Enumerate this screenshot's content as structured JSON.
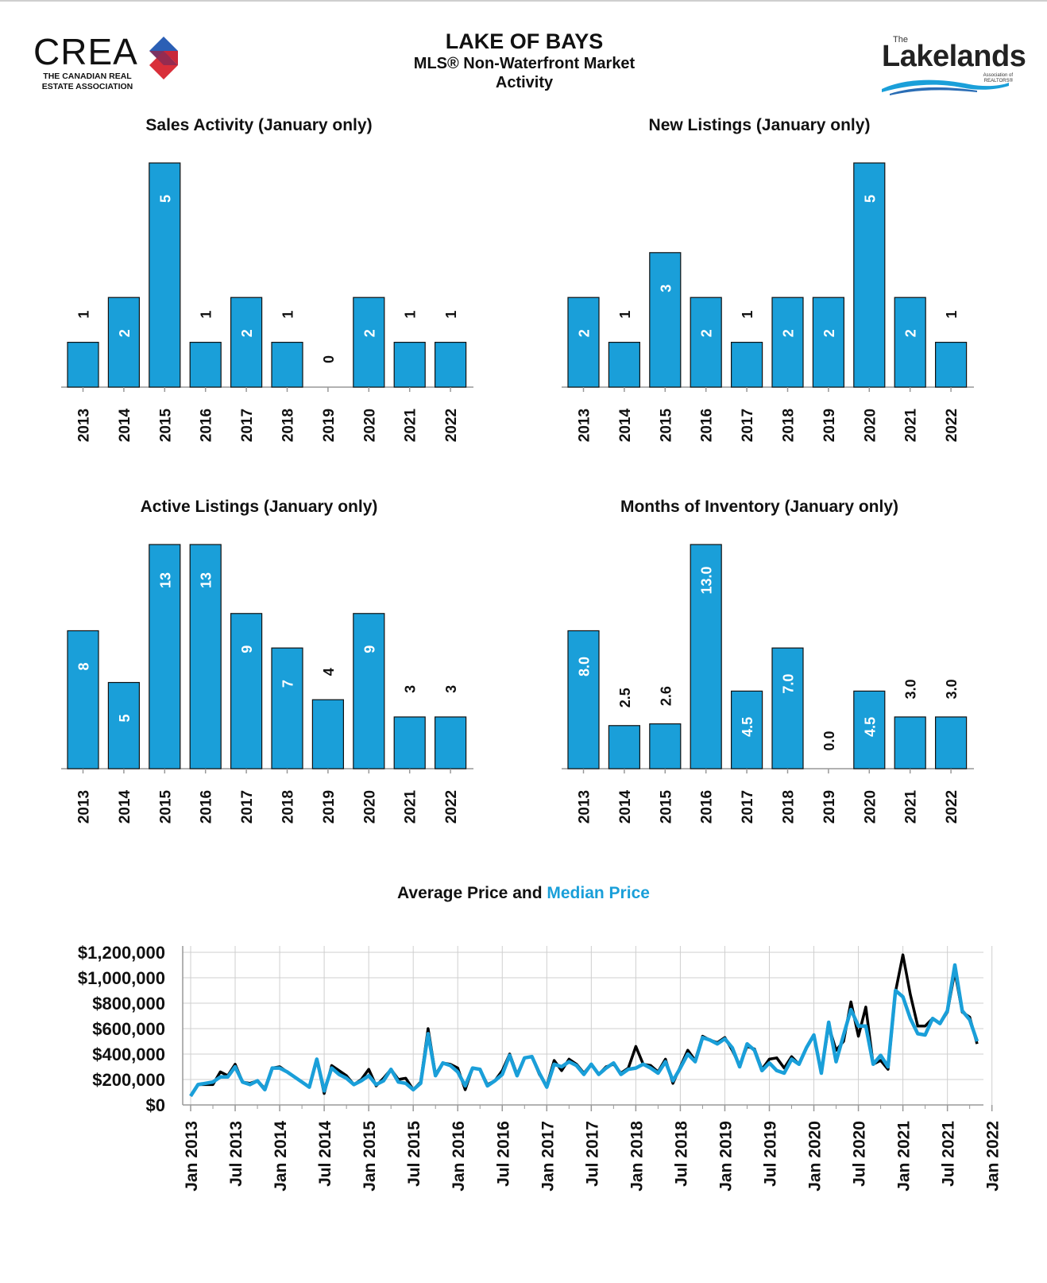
{
  "header": {
    "title": "LAKE OF BAYS",
    "subtitle_line1": "MLS® Non-Waterfront Market",
    "subtitle_line2": "Activity",
    "left_logo_word": "CREA",
    "left_logo_sub_line1": "THE CANADIAN REAL",
    "left_logo_sub_line2": "ESTATE ASSOCIATION",
    "right_logo_the": "The",
    "right_logo_word": "Lakelands",
    "right_logo_sub_line1": "Association of",
    "right_logo_sub_line2": "REALTORS®"
  },
  "colors": {
    "bar": "#1a9fd9",
    "bar_stroke": "#111111",
    "average": "#000000",
    "median": "#1a9fd9"
  },
  "chart_data": [
    {
      "id": "sales",
      "type": "bar",
      "title": "Sales Activity (January only)",
      "categories": [
        "2013",
        "2014",
        "2015",
        "2016",
        "2017",
        "2018",
        "2019",
        "2020",
        "2021",
        "2022"
      ],
      "values": [
        1,
        2,
        5,
        1,
        2,
        1,
        0,
        2,
        1,
        1
      ],
      "labels": [
        "1",
        "2",
        "5",
        "1",
        "2",
        "1",
        "0",
        "2",
        "1",
        "1"
      ],
      "ylim": [
        0,
        5
      ]
    },
    {
      "id": "newlistings",
      "type": "bar",
      "title": "New Listings (January only)",
      "categories": [
        "2013",
        "2014",
        "2015",
        "2016",
        "2017",
        "2018",
        "2019",
        "2020",
        "2021",
        "2022"
      ],
      "values": [
        2,
        1,
        3,
        2,
        1,
        2,
        2,
        5,
        2,
        1
      ],
      "labels": [
        "2",
        "1",
        "3",
        "2",
        "1",
        "2",
        "2",
        "5",
        "2",
        "1"
      ],
      "ylim": [
        0,
        5
      ]
    },
    {
      "id": "active",
      "type": "bar",
      "title": "Active Listings (January only)",
      "categories": [
        "2013",
        "2014",
        "2015",
        "2016",
        "2017",
        "2018",
        "2019",
        "2020",
        "2021",
        "2022"
      ],
      "values": [
        8,
        5,
        13,
        13,
        9,
        7,
        4,
        9,
        3,
        3
      ],
      "labels": [
        "8",
        "5",
        "13",
        "13",
        "9",
        "7",
        "4",
        "9",
        "3",
        "3"
      ],
      "ylim": [
        0,
        13
      ]
    },
    {
      "id": "moi",
      "type": "bar",
      "title": "Months of Inventory (January only)",
      "categories": [
        "2013",
        "2014",
        "2015",
        "2016",
        "2017",
        "2018",
        "2019",
        "2020",
        "2021",
        "2022"
      ],
      "values": [
        8.0,
        2.5,
        2.6,
        13.0,
        4.5,
        7.0,
        0.0,
        4.5,
        3.0,
        3.0
      ],
      "labels": [
        "8.0",
        "2.5",
        "2.6",
        "13.0",
        "4.5",
        "7.0",
        "0.0",
        "4.5",
        "3.0",
        "3.0"
      ],
      "ylim": [
        0,
        13
      ]
    },
    {
      "id": "prices",
      "type": "line",
      "title_part1": "Average Price and",
      "title_part2": "Median Price",
      "x_tick_labels": [
        "Jan 2013",
        "Jul 2013",
        "Jan 2014",
        "Jul 2014",
        "Jan 2015",
        "Jul 2015",
        "Jan 2016",
        "Jul 2016",
        "Jan 2017",
        "Jul 2017",
        "Jan 2018",
        "Jul 2018",
        "Jan 2019",
        "Jul 2019",
        "Jan 2020",
        "Jul 2020",
        "Jan 2021",
        "Jul 2021",
        "Jan 2022"
      ],
      "y_tick_labels": [
        "$0",
        "$200,000",
        "$400,000",
        "$600,000",
        "$800,000",
        "$1,000,000",
        "$1,200,000"
      ],
      "y_ticks": [
        0,
        200000,
        400000,
        600000,
        800000,
        1000000,
        1200000
      ],
      "ylim": [
        0,
        1200000
      ],
      "grid": true,
      "series": [
        {
          "name": "Average Price",
          "values": [
            70000,
            160000,
            160000,
            160000,
            260000,
            230000,
            320000,
            180000,
            170000,
            190000,
            130000,
            290000,
            300000,
            260000,
            220000,
            180000,
            140000,
            360000,
            90000,
            310000,
            270000,
            230000,
            160000,
            200000,
            280000,
            150000,
            210000,
            280000,
            200000,
            210000,
            120000,
            180000,
            600000,
            240000,
            330000,
            320000,
            290000,
            120000,
            290000,
            280000,
            160000,
            190000,
            270000,
            400000,
            240000,
            370000,
            380000,
            240000,
            150000,
            350000,
            270000,
            360000,
            320000,
            250000,
            320000,
            240000,
            300000,
            320000,
            250000,
            290000,
            460000,
            320000,
            310000,
            260000,
            360000,
            170000,
            300000,
            430000,
            350000,
            540000,
            510000,
            490000,
            530000,
            430000,
            310000,
            460000,
            440000,
            280000,
            360000,
            370000,
            290000,
            380000,
            320000,
            450000,
            550000,
            260000,
            620000,
            430000,
            500000,
            810000,
            540000,
            770000,
            320000,
            350000,
            280000,
            890000,
            1180000,
            870000,
            620000,
            620000,
            680000,
            640000,
            730000,
            1050000,
            730000,
            690000,
            480000
          ]
        },
        {
          "name": "Median Price",
          "values": [
            70000,
            160000,
            170000,
            180000,
            220000,
            220000,
            300000,
            180000,
            160000,
            190000,
            120000,
            290000,
            290000,
            260000,
            220000,
            180000,
            140000,
            360000,
            110000,
            290000,
            240000,
            210000,
            160000,
            190000,
            230000,
            160000,
            190000,
            280000,
            180000,
            170000,
            120000,
            170000,
            560000,
            230000,
            330000,
            310000,
            260000,
            150000,
            290000,
            280000,
            150000,
            190000,
            240000,
            390000,
            230000,
            370000,
            380000,
            250000,
            140000,
            320000,
            300000,
            340000,
            310000,
            240000,
            320000,
            240000,
            290000,
            330000,
            240000,
            280000,
            290000,
            320000,
            290000,
            250000,
            340000,
            190000,
            290000,
            400000,
            340000,
            530000,
            510000,
            480000,
            520000,
            450000,
            300000,
            480000,
            430000,
            270000,
            330000,
            270000,
            250000,
            360000,
            320000,
            450000,
            550000,
            250000,
            650000,
            340000,
            550000,
            750000,
            620000,
            620000,
            320000,
            390000,
            300000,
            900000,
            850000,
            680000,
            560000,
            550000,
            680000,
            640000,
            740000,
            1100000,
            740000,
            670000,
            500000
          ]
        }
      ]
    }
  ]
}
